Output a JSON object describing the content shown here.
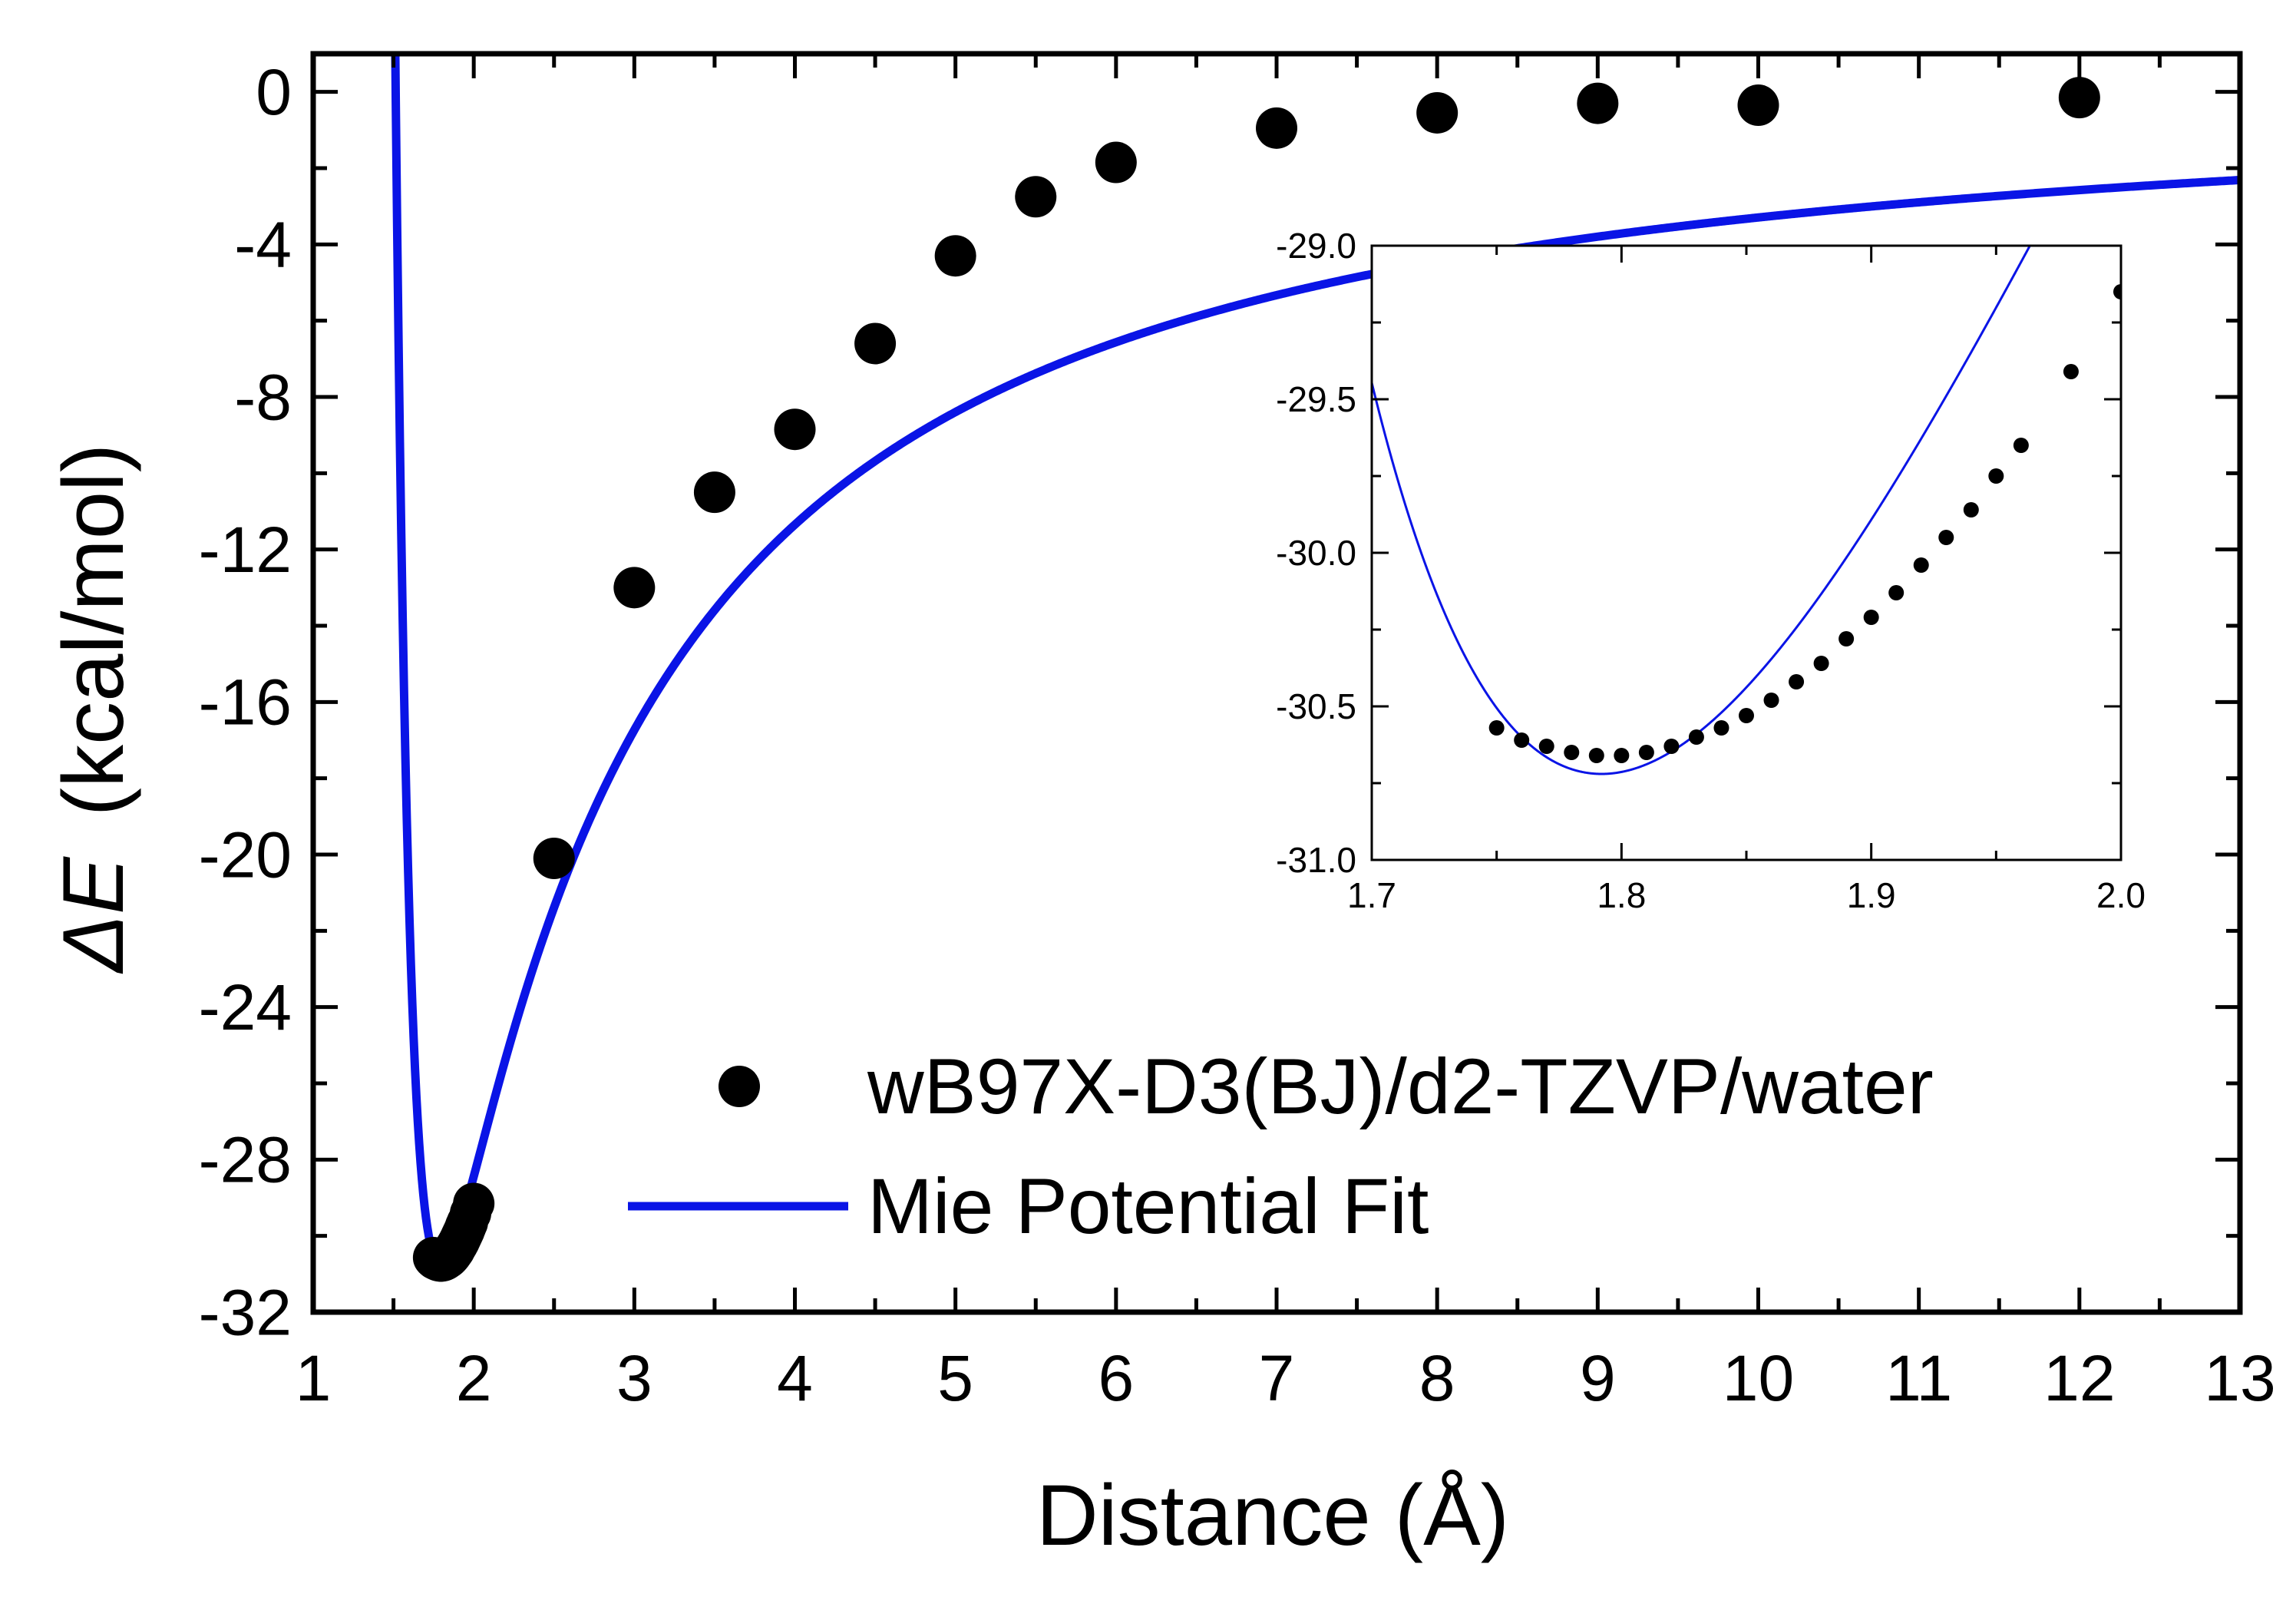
{
  "chart_data": [
    {
      "type": "scatter",
      "title": "",
      "xlabel": "Distance (Å)",
      "ylabel_symbol": "ΔE",
      "ylabel_unit": "(kcal/mol)",
      "xlim": [
        1,
        13
      ],
      "ylim": [
        -32,
        1
      ],
      "xticks": [
        1,
        2,
        3,
        4,
        5,
        6,
        7,
        8,
        9,
        10,
        11,
        12,
        13
      ],
      "yticks": [
        0,
        -4,
        -8,
        -12,
        -16,
        -20,
        -24,
        -28,
        -32
      ],
      "xtick_labels": [
        "1",
        "2",
        "3",
        "4",
        "5",
        "6",
        "7",
        "8",
        "9",
        "10",
        "11",
        "12",
        "13"
      ],
      "ytick_labels": [
        "0",
        "-4",
        "-8",
        "-12",
        "-16",
        "-20",
        "-24",
        "-28",
        "-32"
      ],
      "grid": false,
      "legend_position": "bottom-right",
      "series": [
        {
          "name": "wB97X-D3(BJ)/d2-TZVP/water",
          "kind": "scatter",
          "color": "#000000",
          "x": [
            1.75,
            1.76,
            1.77,
            1.78,
            1.79,
            1.8,
            1.81,
            1.82,
            1.83,
            1.84,
            1.85,
            1.86,
            1.87,
            1.88,
            1.89,
            1.9,
            1.91,
            1.92,
            1.93,
            1.94,
            1.95,
            1.96,
            1.98,
            2.0,
            2.5,
            3.0,
            3.5,
            4.0,
            4.5,
            5.0,
            5.5,
            6.0,
            7.0,
            8.0,
            9.0,
            10.0,
            12.0
          ],
          "y": [
            -30.57,
            -30.61,
            -30.63,
            -30.65,
            -30.66,
            -30.66,
            -30.65,
            -30.63,
            -30.6,
            -30.57,
            -30.53,
            -30.48,
            -30.42,
            -30.36,
            -30.28,
            -30.21,
            -30.13,
            -30.04,
            -29.95,
            -29.86,
            -29.75,
            -29.65,
            -29.41,
            -29.15,
            -20.1,
            -13.0,
            -10.5,
            -8.85,
            -6.6,
            -4.3,
            -2.75,
            -1.85,
            -0.95,
            -0.55,
            -0.3,
            -0.35,
            -0.15
          ]
        },
        {
          "name": "Mie Potential Fit",
          "kind": "line",
          "color": "#0a14e6",
          "model": "mie",
          "params": {
            "epsilon": 30.72,
            "rmin": 1.792,
            "n": 16,
            "m": 1.35
          }
        }
      ]
    },
    {
      "type": "scatter",
      "role": "inset",
      "xlim": [
        1.7,
        2.0
      ],
      "ylim": [
        -31.0,
        -29.0
      ],
      "xticks": [
        1.7,
        1.8,
        1.9,
        2.0
      ],
      "yticks": [
        -29.0,
        -29.5,
        -30.0,
        -30.5,
        -31.0
      ],
      "xtick_labels": [
        "1.7",
        "1.8",
        "1.9",
        "2.0"
      ],
      "ytick_labels": [
        "-29.0",
        "-29.5",
        "-30.0",
        "-30.5",
        "-31.0"
      ]
    }
  ]
}
